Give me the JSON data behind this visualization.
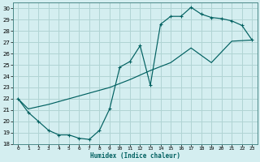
{
  "xlabel": "Humidex (Indice chaleur)",
  "bg_color": "#d4eef0",
  "grid_color": "#b0d4d4",
  "line_color": "#006060",
  "xlim": [
    -0.5,
    23.5
  ],
  "ylim": [
    18,
    30.5
  ],
  "yticks": [
    18,
    19,
    20,
    21,
    22,
    23,
    24,
    25,
    26,
    27,
    28,
    29,
    30
  ],
  "xticks": [
    0,
    1,
    2,
    3,
    4,
    5,
    6,
    7,
    8,
    9,
    10,
    11,
    12,
    13,
    14,
    15,
    16,
    17,
    18,
    19,
    20,
    21,
    22,
    23
  ],
  "curve1_x": [
    0,
    1,
    2,
    3,
    4,
    5,
    6,
    7,
    8,
    9,
    10,
    11,
    12,
    13,
    14,
    15,
    16,
    17,
    18,
    19,
    20,
    21,
    22,
    23
  ],
  "curve1_y": [
    22.0,
    20.8,
    20.0,
    19.2,
    18.8,
    18.8,
    18.5,
    18.4,
    19.2,
    21.1,
    24.8,
    25.3,
    26.7,
    23.2,
    28.6,
    29.3,
    29.3,
    30.1,
    29.5,
    29.2,
    29.1,
    28.9,
    28.5,
    27.2
  ],
  "curve2_x": [
    0,
    1,
    3,
    5,
    7,
    9,
    11,
    13,
    15,
    17,
    19,
    21,
    23
  ],
  "curve2_y": [
    22.0,
    21.1,
    21.5,
    22.0,
    22.5,
    23.0,
    23.7,
    24.5,
    25.2,
    26.5,
    25.2,
    27.1,
    27.2
  ]
}
